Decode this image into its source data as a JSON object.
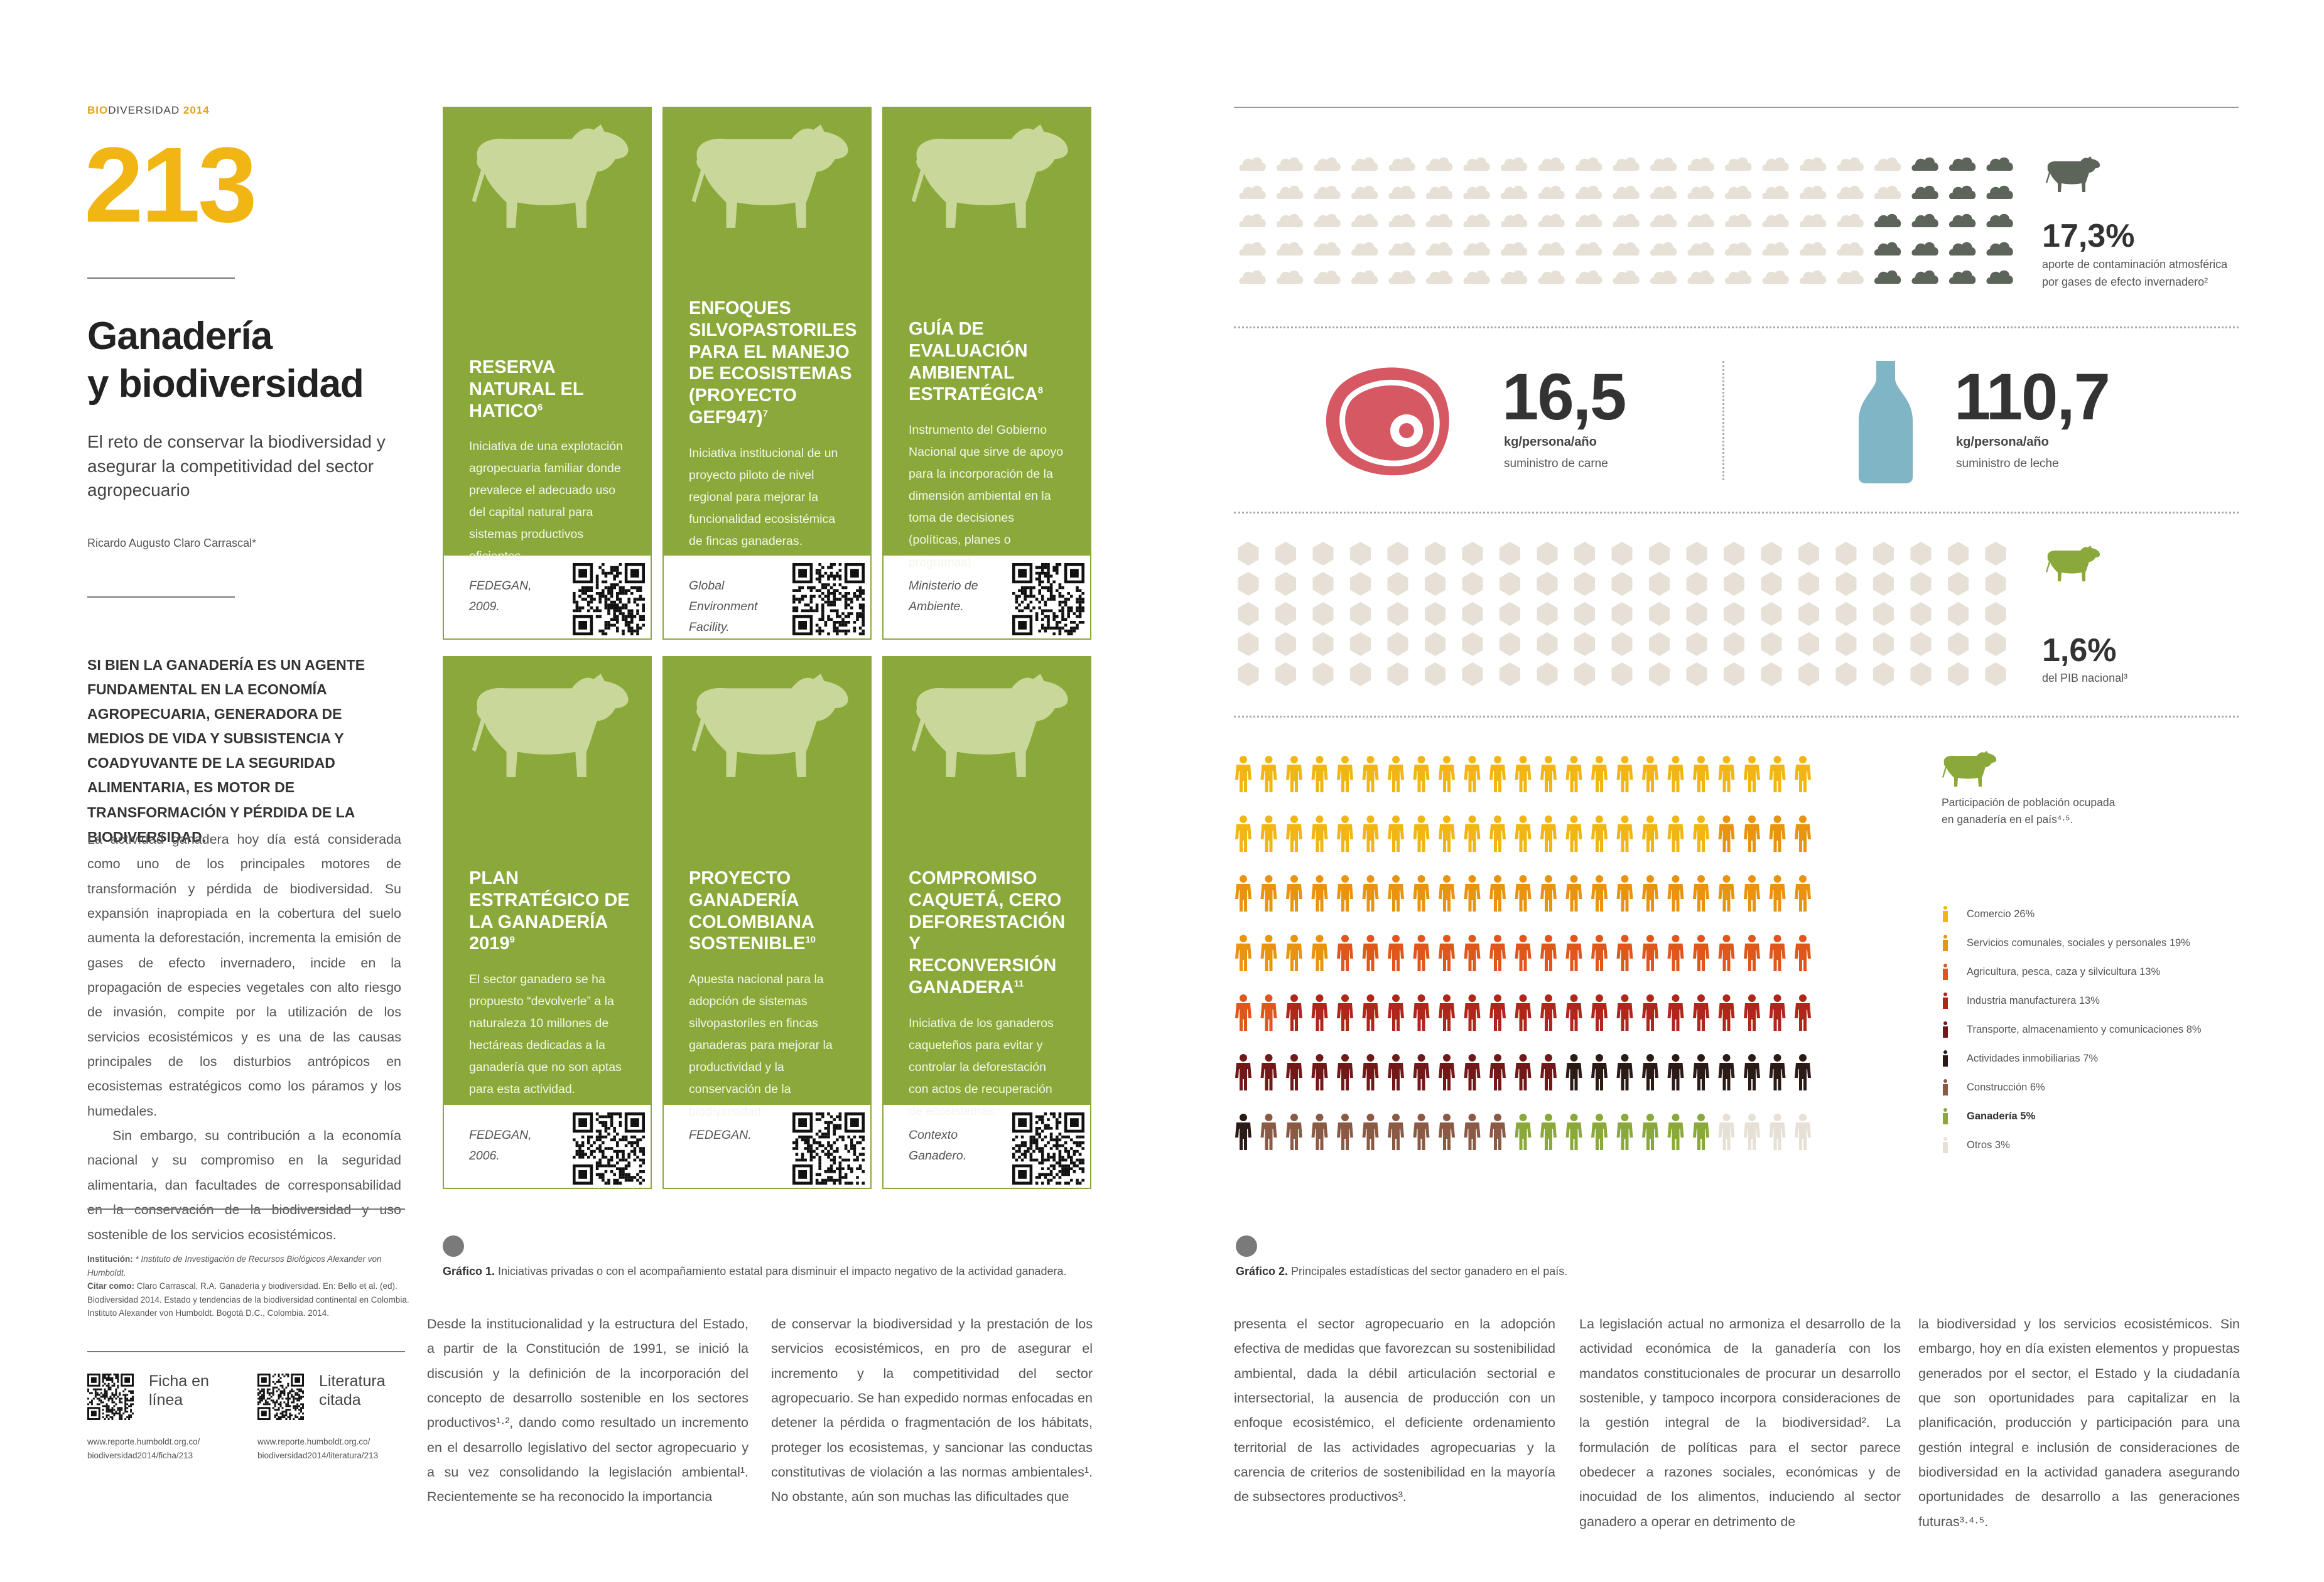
{
  "header": {
    "run_bold": "BIO",
    "run_rest": "DIVERSIDAD",
    "run_year": "2014",
    "page_number": "213"
  },
  "article": {
    "title_line1": "Ganadería",
    "title_line2": "y biodiversidad",
    "subtitle": "El reto de conservar la biodiversidad y asegurar la competitividad del sector agropecuario",
    "author": "Ricardo Augusto Claro Carrascal*",
    "lead": "Si bien la ganadería es un agente fundamental en la economía agropecuaria, generadora de medios de vida y subsistencia y coadyuvante de la seguridad alimentaria, es motor de transformación y pérdida de la biodiversidad.",
    "body_p1": "La actividad ganadera hoy día está considerada como uno de los principales motores de transformación y pérdida de biodiversidad. Su expansión inapropiada en la cobertura del suelo aumenta la deforestación, incrementa la emisión de gases de efecto invernadero, incide en la propagación de especies vegetales con alto riesgo de invasión, compite por la utilización de los servicios ecosistémicos y es una de las causas principales de los disturbios antrópicos en ecosistemas estratégicos como los páramos y los humedales.",
    "body_p2": "Sin embargo, su contribución a la economía nacional y su compromiso en la seguridad alimentaria, dan facultades de corresponsabilidad en la conservación de la biodiversidad y uso sostenible de los servicios ecosistémicos.",
    "footnote_inst_label": "Institución:",
    "footnote_inst": "* Instituto de Investigación de Recursos Biológicos Alexander von Humboldt.",
    "footnote_cite_label": "Citar como:",
    "footnote_cite": "Claro Carrascal, R.A. Ganadería y biodiversidad. En: Bello et al. (ed). Biodiversidad 2014. Estado y tendencias de la biodiversidad continental en Colombia. Instituto Alexander von Humboldt. Bogotá D.C., Colombia. 2014.",
    "ficha_title": "Ficha en línea",
    "ficha_url1": "www.reporte.humboldt.org.co/",
    "ficha_url2": "biodiversidad2014/ficha/213",
    "lit_title": "Literatura citada",
    "lit_url1": "www.reporte.humboldt.org.co/",
    "lit_url2": "biodiversidad2014/literatura/213"
  },
  "cards": [
    {
      "title": "Reserva natural El Hatico",
      "sup": "6",
      "desc": "Iniciativa de una explotación agropecuaria familiar donde prevalece el adecuado uso del capital natural para sistemas productivos eficientes.",
      "source": "FEDEGAN, 2009."
    },
    {
      "title": "Enfoques silvopastoriles para el manejo de ecosistemas (Proyecto GEF947)",
      "sup": "7",
      "desc": "Iniciativa institucional de un proyecto piloto de nivel regional para mejorar la funcionalidad ecosistémica de fincas ganaderas.",
      "source": "Global Environment Facility."
    },
    {
      "title": "Guía de evaluación ambiental estratégica",
      "sup": "8",
      "desc": "Instrumento del Gobierno Nacional que sirve de apoyo para la incorporación de la dimensión ambiental en la toma de decisiones (políticas, planes o programas).",
      "source": "Ministerio de Ambiente."
    },
    {
      "title": "Plan estratégico de la ganadería 2019",
      "sup": "9",
      "desc": "El sector ganadero se ha propuesto “devolverle” a la naturaleza 10 millones de hectáreas dedicadas a la ganadería que no son aptas para esta actividad.",
      "source": "FEDEGAN, 2006."
    },
    {
      "title": "Proyecto ganadería colombiana sostenible",
      "sup": "10",
      "desc": "Apuesta nacional para la adopción de sistemas silvopastoriles en fincas ganaderas para mejorar la productividad y la conservación de la biodiversidad.",
      "source": "FEDEGAN."
    },
    {
      "title": "Compromiso Caquetá, cero deforestación y reconversión ganadera",
      "sup": "11",
      "desc": "Iniciativa de los ganaderos caqueteños para evitar y controlar la deforestación con actos de recuperación de ecosistemas.",
      "source": "Contexto Ganadero."
    }
  ],
  "grafico1": {
    "label": "Gráfico 1.",
    "text": "Iniciativas privadas o con el acompañamiento estatal para disminuir el impacto negativo de la actividad ganadera."
  },
  "grafico2": {
    "label": "Gráfico 2.",
    "text": "Principales estadísticas del sector ganadero en el país."
  },
  "body_cols": [
    "Desde la institucionalidad y la estructura del Estado, a partir de la Constitución de 1991, se inició la discusión y la definición de la incorporación del concepto de desarrollo sostenible en los sectores productivos¹·², dando como resultado un incremento en el desarrollo legislativo del sector agropecuario y a su vez consolidando la legislación ambiental¹. Recientemente se ha reconocido la importancia",
    "de conservar la biodiversidad y la prestación de los servicios ecosistémicos, en pro de asegurar el incremento y la competitividad del sector agropecuario. Se han expedido normas enfocadas en detener la pérdida o fragmentación de los hábitats, proteger los ecosistemas, y sancionar las conductas constitutivas de violación a las normas ambientales¹. No obstante, aún son muchas las dificultades que",
    "presenta el sector agropecuario en la adopción efectiva de medidas que favorezcan su sostenibilidad ambiental, dada la débil articulación sectorial e intersectorial, la ausencia de producción con un enfoque ecosistémico, el deficiente ordenamiento territorial de las actividades agropecuarias y la carencia de criterios de sostenibilidad en la mayoría de subsectores productivos³.",
    "La legislación actual no armoniza el desarrollo de la actividad económica de la ganadería con los mandatos constitucionales de procurar un desarrollo sostenible, y tampoco incorpora consideraciones de la gestión integral de la biodiversidad². La formulación de políticas para el sector parece obedecer a razones sociales, económicas y de inocuidad de los alimentos, induciendo al sector ganadero a operar en detrimento de",
    "la biodiversidad y los servicios ecosistémicos. Sin embargo, hoy en día existen elementos y propuestas generados por el sector, el Estado y la ciudadanía que son oportunidades para capitalizar en la planificación, producción y participación para una gestión integral e inclusión de consideraciones de biodiversidad en la actividad ganadera asegurando oportunidades de desarrollo a las generaciones futuras³·⁴·⁵."
  ],
  "stats": {
    "ghg_value": "17,3%",
    "ghg_line1": "aporte de contaminación atmosférica",
    "ghg_line2": "por gases de efecto invernadero²",
    "ghg_share": 0.173,
    "meat_value": "16,5",
    "meat_unit": "kg/persona/año",
    "meat_label": "suministro de carne",
    "milk_value": "110,7",
    "milk_unit": "kg/persona/año",
    "milk_label": "suministro de leche",
    "gdp_value": "1,6%",
    "gdp_label": "del PIB nacional³",
    "gdp_share": 0.016,
    "employ_line1": "Participación de población ocupada",
    "employ_line2": "en ganadería en el país⁴·⁵."
  },
  "employment_legend": [
    {
      "label": "Comercio 26%",
      "color": "#f1b514",
      "value": 26
    },
    {
      "label": "Servicios comunales, sociales y personales 19%",
      "color": "#e8940f",
      "value": 19
    },
    {
      "label": "Agricultura, pesca, caza y silvicultura 13%",
      "color": "#e0571b",
      "value": 13
    },
    {
      "label": "Industria manufacturera 13%",
      "color": "#b1261b",
      "value": 13
    },
    {
      "label": "Transporte, almacenamiento y comunicaciones 8%",
      "color": "#731818",
      "value": 8
    },
    {
      "label": "Actividades inmobiliarias 7%",
      "color": "#2b1b16",
      "value": 7
    },
    {
      "label": "Construcción 6%",
      "color": "#8b5a45",
      "value": 6
    },
    {
      "label": "Ganadería 5%",
      "color": "#8aa93a",
      "value": 5
    },
    {
      "label": "Otros 3%",
      "color": "#e6e0d6",
      "value": 3
    }
  ],
  "colors": {
    "green": "#8aa93a",
    "yellow": "#f1b514",
    "cloud_light": "#e6e0d6",
    "cloud_dark": "#5d6459",
    "meat": "#d65863",
    "milk": "#7fb5c5"
  }
}
